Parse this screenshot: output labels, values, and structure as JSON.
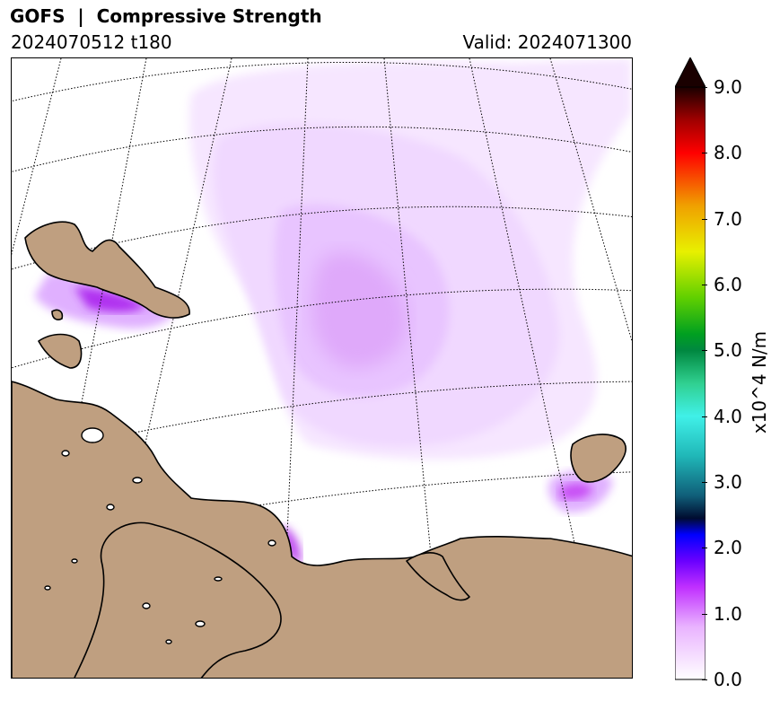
{
  "header": {
    "title": "GOFS  |  Compressive Strength",
    "run": "2024070512 t180",
    "valid": "Valid: 2024071300"
  },
  "colorbar": {
    "label": "x10^4 N/m",
    "ticks": [
      "0.0",
      "1.0",
      "2.0",
      "3.0",
      "4.0",
      "5.0",
      "6.0",
      "7.0",
      "8.0",
      "9.0"
    ],
    "range": [
      0.0,
      9.0
    ],
    "extend": "max",
    "stops": [
      {
        "v": 0.0,
        "c": "#ffffff"
      },
      {
        "v": 0.8,
        "c": "#e9b3ff"
      },
      {
        "v": 1.4,
        "c": "#c030ff"
      },
      {
        "v": 1.8,
        "c": "#6a00ff"
      },
      {
        "v": 2.2,
        "c": "#0000ff"
      },
      {
        "v": 2.45,
        "c": "#000c30"
      },
      {
        "v": 2.8,
        "c": "#10607a"
      },
      {
        "v": 3.4,
        "c": "#20b8b8"
      },
      {
        "v": 4.0,
        "c": "#40f0e8"
      },
      {
        "v": 4.5,
        "c": "#30d090"
      },
      {
        "v": 5.0,
        "c": "#008840"
      },
      {
        "v": 5.25,
        "c": "#00a020"
      },
      {
        "v": 5.8,
        "c": "#60d000"
      },
      {
        "v": 6.5,
        "c": "#e8f000"
      },
      {
        "v": 7.2,
        "c": "#f0a000"
      },
      {
        "v": 8.0,
        "c": "#ff0000"
      },
      {
        "v": 8.5,
        "c": "#a00000"
      },
      {
        "v": 9.0,
        "c": "#1a0000"
      }
    ]
  },
  "map": {
    "land_color": "#bf9f80",
    "ocean_color": "#ffffff",
    "grid_style": "dotted"
  }
}
